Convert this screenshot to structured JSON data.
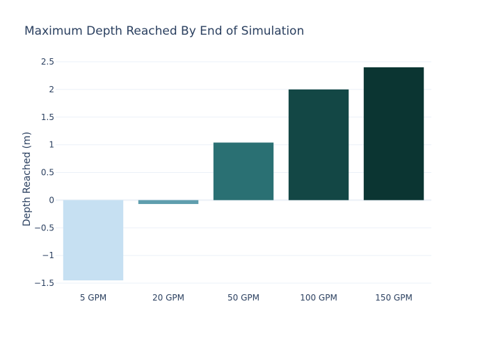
{
  "chart_data": {
    "type": "bar",
    "title": "Maximum Depth Reached By End of Simulation",
    "xlabel": "",
    "ylabel": "Depth Reached (m)",
    "categories": [
      "5 GPM",
      "20 GPM",
      "50 GPM",
      "100 GPM",
      "150 GPM"
    ],
    "values": [
      -1.45,
      -0.07,
      1.04,
      2.0,
      2.4
    ],
    "colors": [
      "#c6e0f2",
      "#5f9ead",
      "#2a7073",
      "#134745",
      "#0b3532"
    ],
    "ylim": [
      -1.5,
      2.5
    ],
    "yticks": [
      -1.5,
      -1,
      -0.5,
      0,
      0.5,
      1,
      1.5,
      2,
      2.5
    ],
    "ytick_labels": [
      "−1.5",
      "−1",
      "−0.5",
      "0",
      "0.5",
      "1",
      "1.5",
      "2",
      "2.5"
    ],
    "grid": true,
    "legend": false
  }
}
